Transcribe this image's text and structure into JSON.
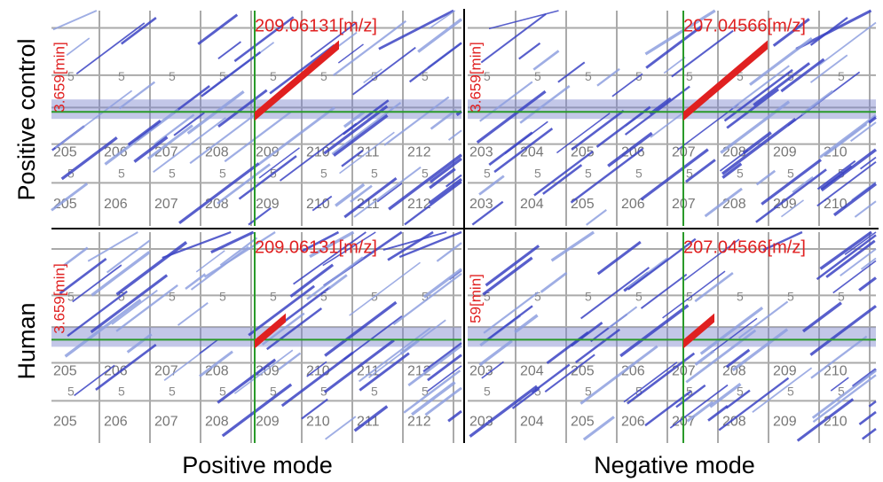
{
  "row_labels": [
    "Positive control",
    "Human"
  ],
  "column_labels": [
    "Positive mode",
    "Negative mode"
  ],
  "panels": [
    {
      "mz_label": "209.06131[m/z]",
      "time_label": "3.659[min]",
      "columns": [
        "205",
        "206",
        "207",
        "208",
        "209",
        "210",
        "211",
        "212"
      ],
      "row_marks": [
        "5",
        "5"
      ]
    },
    {
      "mz_label": "207.04566[m/z]",
      "time_label": "3.659[min]",
      "columns": [
        "203",
        "204",
        "205",
        "206",
        "207",
        "208",
        "209",
        "210"
      ],
      "row_marks": [
        "5",
        "5"
      ]
    },
    {
      "mz_label": "209.06131[m/z]",
      "time_label": "3.659[min]",
      "columns": [
        "205",
        "206",
        "207",
        "208",
        "209",
        "210",
        "211",
        "212"
      ],
      "row_marks": [
        "5",
        "5"
      ]
    },
    {
      "mz_label": "207.04566[m/z]",
      "time_label": "59[min]",
      "columns": [
        "203",
        "204",
        "205",
        "206",
        "207",
        "208",
        "209",
        "210"
      ],
      "row_marks": [
        "5",
        "5"
      ]
    }
  ]
}
